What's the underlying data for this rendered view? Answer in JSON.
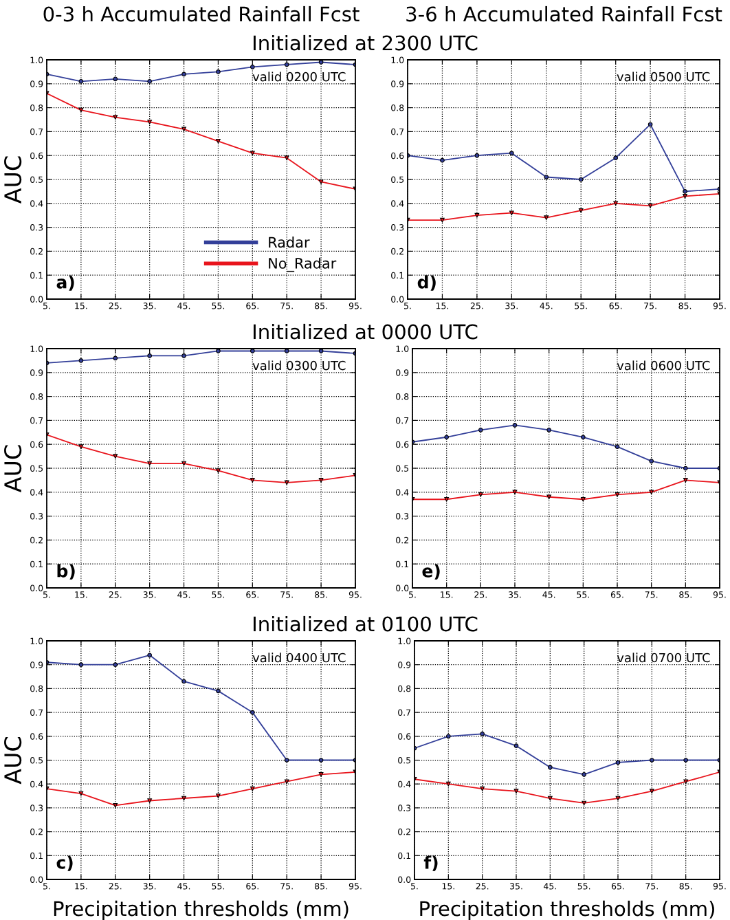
{
  "chart_data": [
    {
      "type": "line",
      "title": "0-3 h Accumulated Rainfall Fcst",
      "subtitle": "Initialized at 2300 UTC",
      "ylabel": "AUC",
      "annotations": [
        "valid 0200 UTC",
        "a)"
      ],
      "x": [
        5,
        15,
        25,
        35,
        45,
        55,
        65,
        75,
        85,
        95
      ],
      "xlim": [
        5,
        95
      ],
      "ylim": [
        0,
        1
      ],
      "xticks": [
        {
          "value": 5,
          "label": "5."
        },
        {
          "value": 15,
          "label": "15."
        },
        {
          "value": 25,
          "label": "25."
        },
        {
          "value": 35,
          "label": "35."
        },
        {
          "value": 45,
          "label": "45."
        },
        {
          "value": 55,
          "label": "55."
        },
        {
          "value": 65,
          "label": "65."
        },
        {
          "value": 75,
          "label": "75."
        },
        {
          "value": 85,
          "label": "85."
        },
        {
          "value": 95,
          "label": "95."
        }
      ],
      "yticks": [
        {
          "value": 0,
          "label": "0.0"
        },
        {
          "value": 0.1,
          "label": "0.1"
        },
        {
          "value": 0.2,
          "label": "0.2"
        },
        {
          "value": 0.3,
          "label": "0.3"
        },
        {
          "value": 0.4,
          "label": "0.4"
        },
        {
          "value": 0.5,
          "label": "0.5"
        },
        {
          "value": 0.6,
          "label": "0.6"
        },
        {
          "value": 0.7,
          "label": "0.7"
        },
        {
          "value": 0.8,
          "label": "0.8"
        },
        {
          "value": 0.9,
          "label": "0.9"
        },
        {
          "value": 1,
          "label": "1.0"
        }
      ],
      "grid": true,
      "legend": "bottom right",
      "line_style": "solid",
      "series": [
        {
          "name": "Radar",
          "color": "#333f99",
          "marker": "circle",
          "values": [
            0.94,
            0.91,
            0.92,
            0.91,
            0.94,
            0.95,
            0.97,
            0.98,
            0.99,
            0.98
          ]
        },
        {
          "name": "No_Radar",
          "color": "#e8141c",
          "marker": "triangle",
          "values": [
            0.86,
            0.79,
            0.76,
            0.74,
            0.71,
            0.66,
            0.61,
            0.59,
            0.49,
            0.46
          ]
        }
      ]
    },
    {
      "type": "line",
      "title": "3-6 h Accumulated Rainfall Fcst",
      "annotations": [
        "valid 0500 UTC",
        "d)"
      ],
      "x": [
        5,
        15,
        25,
        35,
        45,
        55,
        65,
        75,
        85,
        95
      ],
      "xlim": [
        5,
        95
      ],
      "ylim": [
        0,
        1
      ],
      "xticks": [
        {
          "value": 5,
          "label": "5."
        },
        {
          "value": 15,
          "label": "15."
        },
        {
          "value": 25,
          "label": "25."
        },
        {
          "value": 35,
          "label": "35."
        },
        {
          "value": 45,
          "label": "45."
        },
        {
          "value": 55,
          "label": "55."
        },
        {
          "value": 65,
          "label": "65."
        },
        {
          "value": 75,
          "label": "75."
        },
        {
          "value": 85,
          "label": "85."
        },
        {
          "value": 95,
          "label": "95."
        }
      ],
      "yticks": [
        {
          "value": 0,
          "label": "0.0"
        },
        {
          "value": 0.1,
          "label": "0.1"
        },
        {
          "value": 0.2,
          "label": "0.2"
        },
        {
          "value": 0.3,
          "label": "0.3"
        },
        {
          "value": 0.4,
          "label": "0.4"
        },
        {
          "value": 0.5,
          "label": "0.5"
        },
        {
          "value": 0.6,
          "label": "0.6"
        },
        {
          "value": 0.7,
          "label": "0.7"
        },
        {
          "value": 0.8,
          "label": "0.8"
        },
        {
          "value": 0.9,
          "label": "0.9"
        },
        {
          "value": 1,
          "label": "1.0"
        }
      ],
      "grid": true,
      "line_style": "solid",
      "series": [
        {
          "color": "#333f99",
          "marker": "circle",
          "values": [
            0.6,
            0.58,
            0.6,
            0.61,
            0.51,
            0.5,
            0.59,
            0.73,
            0.45,
            0.46
          ]
        },
        {
          "color": "#e8141c",
          "marker": "triangle",
          "values": [
            0.33,
            0.33,
            0.35,
            0.36,
            0.34,
            0.37,
            0.4,
            0.39,
            0.43,
            0.44
          ]
        }
      ]
    },
    {
      "type": "line",
      "subtitle": "Initialized at 0000 UTC",
      "ylabel": "AUC",
      "annotations": [
        "valid 0300 UTC",
        "b)"
      ],
      "x": [
        5,
        15,
        25,
        35,
        45,
        55,
        65,
        75,
        85,
        95
      ],
      "xlim": [
        5,
        95
      ],
      "ylim": [
        0,
        1
      ],
      "xticks": [
        {
          "value": 5,
          "label": "5."
        },
        {
          "value": 15,
          "label": "15."
        },
        {
          "value": 25,
          "label": "25."
        },
        {
          "value": 35,
          "label": "35."
        },
        {
          "value": 45,
          "label": "45."
        },
        {
          "value": 55,
          "label": "55."
        },
        {
          "value": 65,
          "label": "65."
        },
        {
          "value": 75,
          "label": "75."
        },
        {
          "value": 85,
          "label": "85."
        },
        {
          "value": 95,
          "label": "95."
        }
      ],
      "yticks": [
        {
          "value": 0,
          "label": "0.0"
        },
        {
          "value": 0.1,
          "label": "0.1"
        },
        {
          "value": 0.2,
          "label": "0.2"
        },
        {
          "value": 0.3,
          "label": "0.3"
        },
        {
          "value": 0.4,
          "label": "0.4"
        },
        {
          "value": 0.5,
          "label": "0.5"
        },
        {
          "value": 0.6,
          "label": "0.6"
        },
        {
          "value": 0.7,
          "label": "0.7"
        },
        {
          "value": 0.8,
          "label": "0.8"
        },
        {
          "value": 0.9,
          "label": "0.9"
        },
        {
          "value": 1,
          "label": "1.0"
        }
      ],
      "grid": true,
      "line_style": "solid",
      "series": [
        {
          "color": "#333f99",
          "marker": "circle",
          "values": [
            0.94,
            0.95,
            0.96,
            0.97,
            0.97,
            0.99,
            0.99,
            0.99,
            0.99,
            0.98
          ]
        },
        {
          "color": "#e8141c",
          "marker": "triangle",
          "values": [
            0.64,
            0.59,
            0.55,
            0.52,
            0.52,
            0.49,
            0.45,
            0.44,
            0.45,
            0.47
          ]
        }
      ]
    },
    {
      "type": "line",
      "annotations": [
        "valid 0600 UTC",
        "e)"
      ],
      "x": [
        5,
        15,
        25,
        35,
        45,
        55,
        65,
        75,
        85,
        95
      ],
      "xlim": [
        5,
        95
      ],
      "ylim": [
        0,
        1
      ],
      "xticks": [
        {
          "value": 5,
          "label": "5."
        },
        {
          "value": 15,
          "label": "15."
        },
        {
          "value": 25,
          "label": "25."
        },
        {
          "value": 35,
          "label": "35."
        },
        {
          "value": 45,
          "label": "45."
        },
        {
          "value": 55,
          "label": "55."
        },
        {
          "value": 65,
          "label": "65."
        },
        {
          "value": 75,
          "label": "75."
        },
        {
          "value": 85,
          "label": "85."
        },
        {
          "value": 95,
          "label": "95."
        }
      ],
      "yticks": [
        {
          "value": 0,
          "label": "0.0"
        },
        {
          "value": 0.1,
          "label": "0.1"
        },
        {
          "value": 0.2,
          "label": "0.2"
        },
        {
          "value": 0.3,
          "label": "0.3"
        },
        {
          "value": 0.4,
          "label": "0.4"
        },
        {
          "value": 0.5,
          "label": "0.5"
        },
        {
          "value": 0.6,
          "label": "0.6"
        },
        {
          "value": 0.7,
          "label": "0.7"
        },
        {
          "value": 0.8,
          "label": "0.8"
        },
        {
          "value": 0.9,
          "label": "0.9"
        },
        {
          "value": 1,
          "label": "1.0"
        }
      ],
      "grid": true,
      "line_style": "solid",
      "series": [
        {
          "color": "#333f99",
          "marker": "circle",
          "values": [
            0.61,
            0.63,
            0.66,
            0.68,
            0.66,
            0.63,
            0.59,
            0.53,
            0.5,
            0.5
          ]
        },
        {
          "color": "#e8141c",
          "marker": "triangle",
          "values": [
            0.37,
            0.37,
            0.39,
            0.4,
            0.38,
            0.37,
            0.39,
            0.4,
            0.45,
            0.44
          ]
        }
      ]
    },
    {
      "type": "line",
      "subtitle": "Initialized at 0100 UTC",
      "ylabel": "AUC",
      "xlabel": "Precipitation thresholds (mm)",
      "annotations": [
        "valid 0400 UTC",
        "c)"
      ],
      "x": [
        5,
        15,
        25,
        35,
        45,
        55,
        65,
        75,
        85,
        95
      ],
      "xlim": [
        5,
        95
      ],
      "ylim": [
        0,
        1
      ],
      "xticks": [
        {
          "value": 5,
          "label": "5."
        },
        {
          "value": 15,
          "label": "15."
        },
        {
          "value": 25,
          "label": "25."
        },
        {
          "value": 35,
          "label": "35."
        },
        {
          "value": 45,
          "label": "45."
        },
        {
          "value": 55,
          "label": "55."
        },
        {
          "value": 65,
          "label": "65."
        },
        {
          "value": 75,
          "label": "75."
        },
        {
          "value": 85,
          "label": "85."
        },
        {
          "value": 95,
          "label": "95."
        }
      ],
      "yticks": [
        {
          "value": 0,
          "label": "0.0"
        },
        {
          "value": 0.1,
          "label": "0.1"
        },
        {
          "value": 0.2,
          "label": "0.2"
        },
        {
          "value": 0.3,
          "label": "0.3"
        },
        {
          "value": 0.4,
          "label": "0.4"
        },
        {
          "value": 0.5,
          "label": "0.5"
        },
        {
          "value": 0.6,
          "label": "0.6"
        },
        {
          "value": 0.7,
          "label": "0.7"
        },
        {
          "value": 0.8,
          "label": "0.8"
        },
        {
          "value": 0.9,
          "label": "0.9"
        },
        {
          "value": 1,
          "label": "1.0"
        }
      ],
      "grid": true,
      "line_style": "solid",
      "series": [
        {
          "color": "#333f99",
          "marker": "circle",
          "values": [
            0.91,
            0.9,
            0.9,
            0.94,
            0.83,
            0.79,
            0.7,
            0.5,
            0.5,
            0.5
          ]
        },
        {
          "color": "#e8141c",
          "marker": "triangle",
          "values": [
            0.38,
            0.36,
            0.31,
            0.33,
            0.34,
            0.35,
            0.38,
            0.41,
            0.44,
            0.45
          ]
        }
      ]
    },
    {
      "type": "line",
      "xlabel": "Precipitation thresholds (mm)",
      "annotations": [
        "valid 0700 UTC",
        "f)"
      ],
      "x": [
        5,
        15,
        25,
        35,
        45,
        55,
        65,
        75,
        85,
        95
      ],
      "xlim": [
        5,
        95
      ],
      "ylim": [
        0,
        1
      ],
      "xticks": [
        {
          "value": 5,
          "label": "5."
        },
        {
          "value": 15,
          "label": "15."
        },
        {
          "value": 25,
          "label": "25."
        },
        {
          "value": 35,
          "label": "35."
        },
        {
          "value": 45,
          "label": "45."
        },
        {
          "value": 55,
          "label": "55."
        },
        {
          "value": 65,
          "label": "65."
        },
        {
          "value": 75,
          "label": "75."
        },
        {
          "value": 85,
          "label": "85."
        },
        {
          "value": 95,
          "label": "95."
        }
      ],
      "yticks": [
        {
          "value": 0,
          "label": "0.0"
        },
        {
          "value": 0.1,
          "label": "0.1"
        },
        {
          "value": 0.2,
          "label": "0.2"
        },
        {
          "value": 0.3,
          "label": "0.3"
        },
        {
          "value": 0.4,
          "label": "0.4"
        },
        {
          "value": 0.5,
          "label": "0.5"
        },
        {
          "value": 0.6,
          "label": "0.6"
        },
        {
          "value": 0.7,
          "label": "0.7"
        },
        {
          "value": 0.8,
          "label": "0.8"
        },
        {
          "value": 0.9,
          "label": "0.9"
        },
        {
          "value": 1,
          "label": "1.0"
        }
      ],
      "grid": true,
      "line_style": "solid",
      "series": [
        {
          "color": "#333f99",
          "marker": "circle",
          "values": [
            0.55,
            0.6,
            0.61,
            0.56,
            0.47,
            0.44,
            0.49,
            0.5,
            0.5,
            0.5
          ]
        },
        {
          "color": "#e8141c",
          "marker": "triangle",
          "values": [
            0.42,
            0.4,
            0.38,
            0.37,
            0.34,
            0.32,
            0.34,
            0.37,
            0.41,
            0.45
          ]
        }
      ]
    }
  ]
}
